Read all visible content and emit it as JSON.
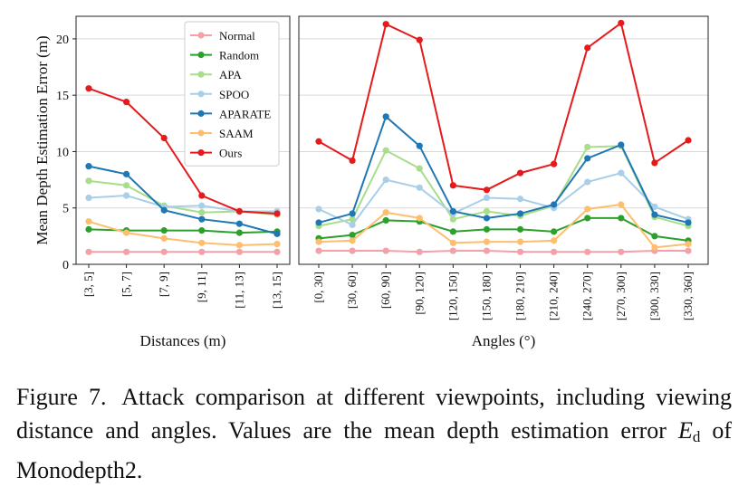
{
  "figure": {
    "ylabel": "Mean Depth Estimation Error (m)",
    "yticks": [
      0,
      5,
      10,
      15,
      20
    ],
    "ylim": [
      0,
      22
    ],
    "series_styles": [
      {
        "name": "Normal",
        "color": "#f4a0a8"
      },
      {
        "name": "Random",
        "color": "#2ca02c"
      },
      {
        "name": "APA",
        "color": "#a8dd8a"
      },
      {
        "name": "SPOO",
        "color": "#a9cfe8"
      },
      {
        "name": "APARATE",
        "color": "#1f77b4"
      },
      {
        "name": "SAAM",
        "color": "#fbbf6f"
      },
      {
        "name": "Ours",
        "color": "#e41a1c"
      }
    ]
  },
  "chart_data": [
    {
      "type": "line",
      "xlabel": "Distances (m)",
      "ylabel": "Mean Depth Estimation Error (m)",
      "ylim": [
        0,
        22
      ],
      "grid": true,
      "legend": "upper-right",
      "categories": [
        "[3, 5]",
        "[5, 7]",
        "[7, 9]",
        "[9, 11]",
        "[11, 13]",
        "[13, 15]"
      ],
      "series": [
        {
          "name": "Normal",
          "values": [
            1.1,
            1.1,
            1.1,
            1.1,
            1.1,
            1.1
          ]
        },
        {
          "name": "Random",
          "values": [
            3.1,
            3.0,
            3.0,
            3.0,
            2.8,
            2.9
          ]
        },
        {
          "name": "APA",
          "values": [
            7.4,
            7.0,
            5.2,
            4.6,
            4.7,
            4.4
          ]
        },
        {
          "name": "SPOO",
          "values": [
            5.9,
            6.1,
            5.1,
            5.2,
            4.7,
            4.7
          ]
        },
        {
          "name": "APARATE",
          "values": [
            8.7,
            8.0,
            4.8,
            4.0,
            3.6,
            2.7
          ]
        },
        {
          "name": "SAAM",
          "values": [
            3.8,
            2.8,
            2.3,
            1.9,
            1.7,
            1.8
          ]
        },
        {
          "name": "Ours",
          "values": [
            15.6,
            14.4,
            11.2,
            6.1,
            4.7,
            4.5
          ]
        }
      ]
    },
    {
      "type": "line",
      "xlabel": "Angles (°)",
      "ylabel": "",
      "ylim": [
        0,
        22
      ],
      "grid": true,
      "categories": [
        "[0, 30]",
        "[30, 60]",
        "[60, 90]",
        "[90, 120]",
        "[120, 150]",
        "[150, 180]",
        "[180, 210]",
        "[210, 240]",
        "[240, 270]",
        "[270, 300]",
        "[300, 330]",
        "[330, 360]"
      ],
      "series": [
        {
          "name": "Normal",
          "values": [
            1.2,
            1.2,
            1.2,
            1.1,
            1.2,
            1.2,
            1.1,
            1.1,
            1.1,
            1.1,
            1.2,
            1.2
          ]
        },
        {
          "name": "Random",
          "values": [
            2.3,
            2.6,
            3.9,
            3.8,
            2.9,
            3.1,
            3.1,
            2.9,
            4.1,
            4.1,
            2.5,
            2.1
          ]
        },
        {
          "name": "APA",
          "values": [
            3.4,
            4.0,
            10.1,
            8.5,
            4.0,
            4.7,
            4.3,
            5.2,
            10.4,
            10.5,
            4.2,
            3.4
          ]
        },
        {
          "name": "SPOO",
          "values": [
            4.9,
            3.5,
            7.5,
            6.8,
            4.5,
            5.9,
            5.8,
            5.0,
            7.3,
            8.1,
            5.1,
            4.0
          ]
        },
        {
          "name": "APARATE",
          "values": [
            3.7,
            4.5,
            13.1,
            10.5,
            4.7,
            4.1,
            4.5,
            5.3,
            9.4,
            10.6,
            4.4,
            3.7
          ]
        },
        {
          "name": "SAAM",
          "values": [
            2.0,
            2.1,
            4.6,
            4.1,
            1.9,
            2.0,
            2.0,
            2.1,
            4.9,
            5.3,
            1.5,
            1.8
          ]
        },
        {
          "name": "Ours",
          "values": [
            10.9,
            9.2,
            21.3,
            19.9,
            7.0,
            6.6,
            8.1,
            8.9,
            19.2,
            21.4,
            9.0,
            11.0
          ]
        }
      ]
    }
  ],
  "caption": {
    "lead": "Figure 7.",
    "text_before": "Attack comparison at different viewpoints, including viewing distance and angles. Values are the mean depth estimation error",
    "symbol": "E",
    "symbol_sub": "d",
    "text_after": "of Monodepth2."
  }
}
